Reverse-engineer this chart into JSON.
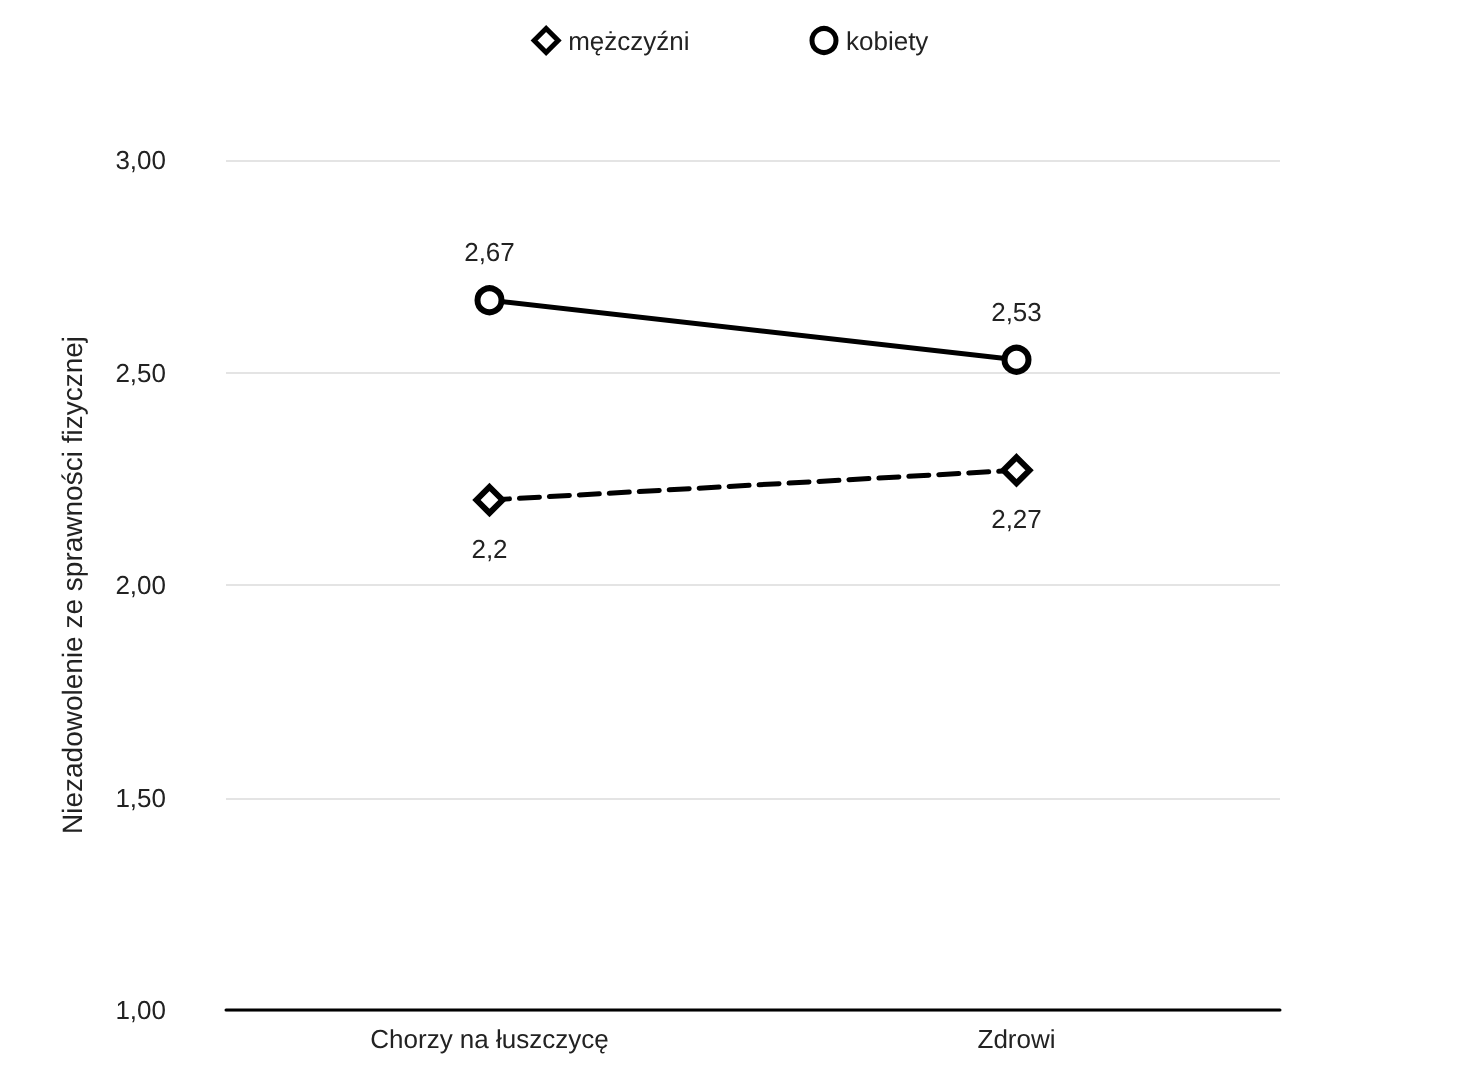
{
  "chart_data": {
    "type": "line",
    "ylabel": "Niezadowolenie ze sprawności fizycznej",
    "categories": [
      "Chorzy na łuszczycę",
      "Zdrowi"
    ],
    "series": [
      {
        "name": "mężczyźni",
        "color": "#000000",
        "values": [
          2.2,
          2.27
        ],
        "value_labels": [
          "2,2",
          "2,27"
        ],
        "marker": "diamond",
        "line_style": "dashed"
      },
      {
        "name": "kobiety",
        "color": "#000000",
        "values": [
          2.67,
          2.53
        ],
        "value_labels": [
          "2,67",
          "2,53"
        ],
        "marker": "circle",
        "line_style": "solid"
      }
    ],
    "ylim": [
      1,
      3
    ],
    "yticks": [
      {
        "value": 1,
        "label": "1,00"
      },
      {
        "value": 1.5,
        "label": "1,50"
      },
      {
        "value": 2,
        "label": "2,00"
      },
      {
        "value": 2.5,
        "label": "2,50"
      },
      {
        "value": 3,
        "label": "3,00"
      }
    ],
    "grid": "y",
    "legend": "top"
  }
}
